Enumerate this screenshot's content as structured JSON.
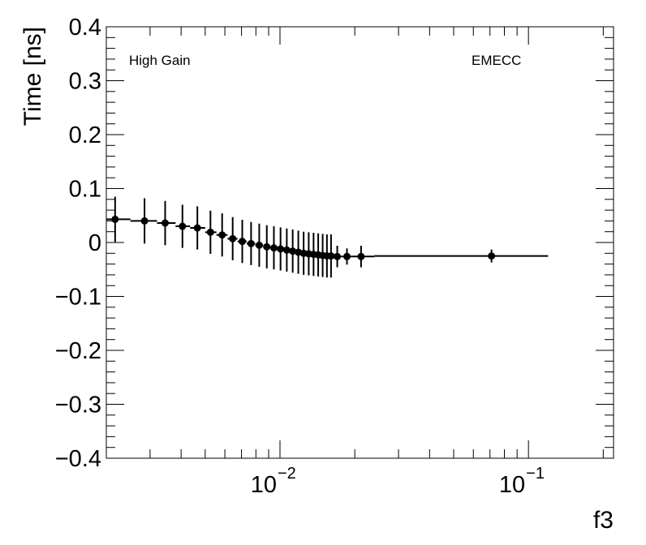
{
  "chart_data": {
    "type": "scatter",
    "title": "",
    "xlabel": "f3",
    "ylabel": "Time [ns]",
    "xscale": "log",
    "xlim": [
      0.002,
      0.22
    ],
    "ylim": [
      -0.4,
      0.4
    ],
    "grid": false,
    "legend": "none",
    "annotations": [
      "High Gain",
      "EMECC"
    ],
    "yticks": [
      "0.4",
      "0.3",
      "0.2",
      "0.1",
      "0",
      "−0.1",
      "−0.2",
      "−0.3",
      "−0.4"
    ],
    "ytick_values": [
      0.4,
      0.3,
      0.2,
      0.1,
      0,
      -0.1,
      -0.2,
      -0.3,
      -0.4
    ],
    "xticks": [
      {
        "value": 0.01,
        "base": "10",
        "exp": "−2"
      },
      {
        "value": 0.1,
        "base": "10",
        "exp": "−1"
      }
    ],
    "series": [
      {
        "points": [
          {
            "x": 0.00217,
            "y": 0.043,
            "err": 0.042,
            "xlo": 0.002,
            "xhi": 0.0025
          },
          {
            "x": 0.00285,
            "y": 0.04,
            "err": 0.042,
            "xlo": 0.0025,
            "xhi": 0.0032
          },
          {
            "x": 0.00345,
            "y": 0.036,
            "err": 0.041,
            "xlo": 0.0032,
            "xhi": 0.0038
          },
          {
            "x": 0.00405,
            "y": 0.03,
            "err": 0.04,
            "xlo": 0.0038,
            "xhi": 0.00435
          },
          {
            "x": 0.00465,
            "y": 0.027,
            "err": 0.04,
            "xlo": 0.00435,
            "xhi": 0.005
          },
          {
            "x": 0.00525,
            "y": 0.019,
            "err": 0.04,
            "xlo": 0.005,
            "xhi": 0.00555
          },
          {
            "x": 0.00585,
            "y": 0.014,
            "err": 0.04,
            "xlo": 0.00555,
            "xhi": 0.00615
          },
          {
            "x": 0.00645,
            "y": 0.007,
            "err": 0.04,
            "xlo": 0.00615,
            "xhi": 0.00675
          },
          {
            "x": 0.00705,
            "y": 0.002,
            "err": 0.04,
            "xlo": 0.00675,
            "xhi": 0.00735
          },
          {
            "x": 0.00765,
            "y": -0.002,
            "err": 0.04,
            "xlo": 0.00735,
            "xhi": 0.00795
          },
          {
            "x": 0.00825,
            "y": -0.005,
            "err": 0.04,
            "xlo": 0.00795,
            "xhi": 0.00855
          },
          {
            "x": 0.00885,
            "y": -0.008,
            "err": 0.04,
            "xlo": 0.00855,
            "xhi": 0.00915
          },
          {
            "x": 0.00945,
            "y": -0.01,
            "err": 0.04,
            "xlo": 0.00915,
            "xhi": 0.00975
          },
          {
            "x": 0.01005,
            "y": -0.012,
            "err": 0.04,
            "xlo": 0.00975,
            "xhi": 0.01035
          },
          {
            "x": 0.01065,
            "y": -0.014,
            "err": 0.04,
            "xlo": 0.01035,
            "xhi": 0.01095
          },
          {
            "x": 0.01125,
            "y": -0.016,
            "err": 0.04,
            "xlo": 0.01095,
            "xhi": 0.01155
          },
          {
            "x": 0.01185,
            "y": -0.018,
            "err": 0.04,
            "xlo": 0.01155,
            "xhi": 0.01215
          },
          {
            "x": 0.01245,
            "y": -0.02,
            "err": 0.04,
            "xlo": 0.01215,
            "xhi": 0.01275
          },
          {
            "x": 0.01305,
            "y": -0.021,
            "err": 0.04,
            "xlo": 0.01275,
            "xhi": 0.01335
          },
          {
            "x": 0.01365,
            "y": -0.022,
            "err": 0.04,
            "xlo": 0.01335,
            "xhi": 0.01395
          },
          {
            "x": 0.01425,
            "y": -0.023,
            "err": 0.04,
            "xlo": 0.01395,
            "xhi": 0.01455
          },
          {
            "x": 0.01485,
            "y": -0.024,
            "err": 0.04,
            "xlo": 0.01455,
            "xhi": 0.01515
          },
          {
            "x": 0.01545,
            "y": -0.025,
            "err": 0.04,
            "xlo": 0.01515,
            "xhi": 0.01575
          },
          {
            "x": 0.01605,
            "y": -0.025,
            "err": 0.04,
            "xlo": 0.01575,
            "xhi": 0.01635
          },
          {
            "x": 0.017,
            "y": -0.026,
            "err": 0.02,
            "xlo": 0.01635,
            "xhi": 0.0178
          },
          {
            "x": 0.0186,
            "y": -0.026,
            "err": 0.015,
            "xlo": 0.0178,
            "xhi": 0.0195
          },
          {
            "x": 0.0212,
            "y": -0.026,
            "err": 0.02,
            "xlo": 0.0195,
            "xhi": 0.024
          },
          {
            "x": 0.071,
            "y": -0.025,
            "err": 0.012,
            "xlo": 0.024,
            "xhi": 0.12
          }
        ]
      }
    ],
    "colors": {
      "marker": "#000000",
      "axis": "#000000",
      "background": "#ffffff"
    }
  }
}
